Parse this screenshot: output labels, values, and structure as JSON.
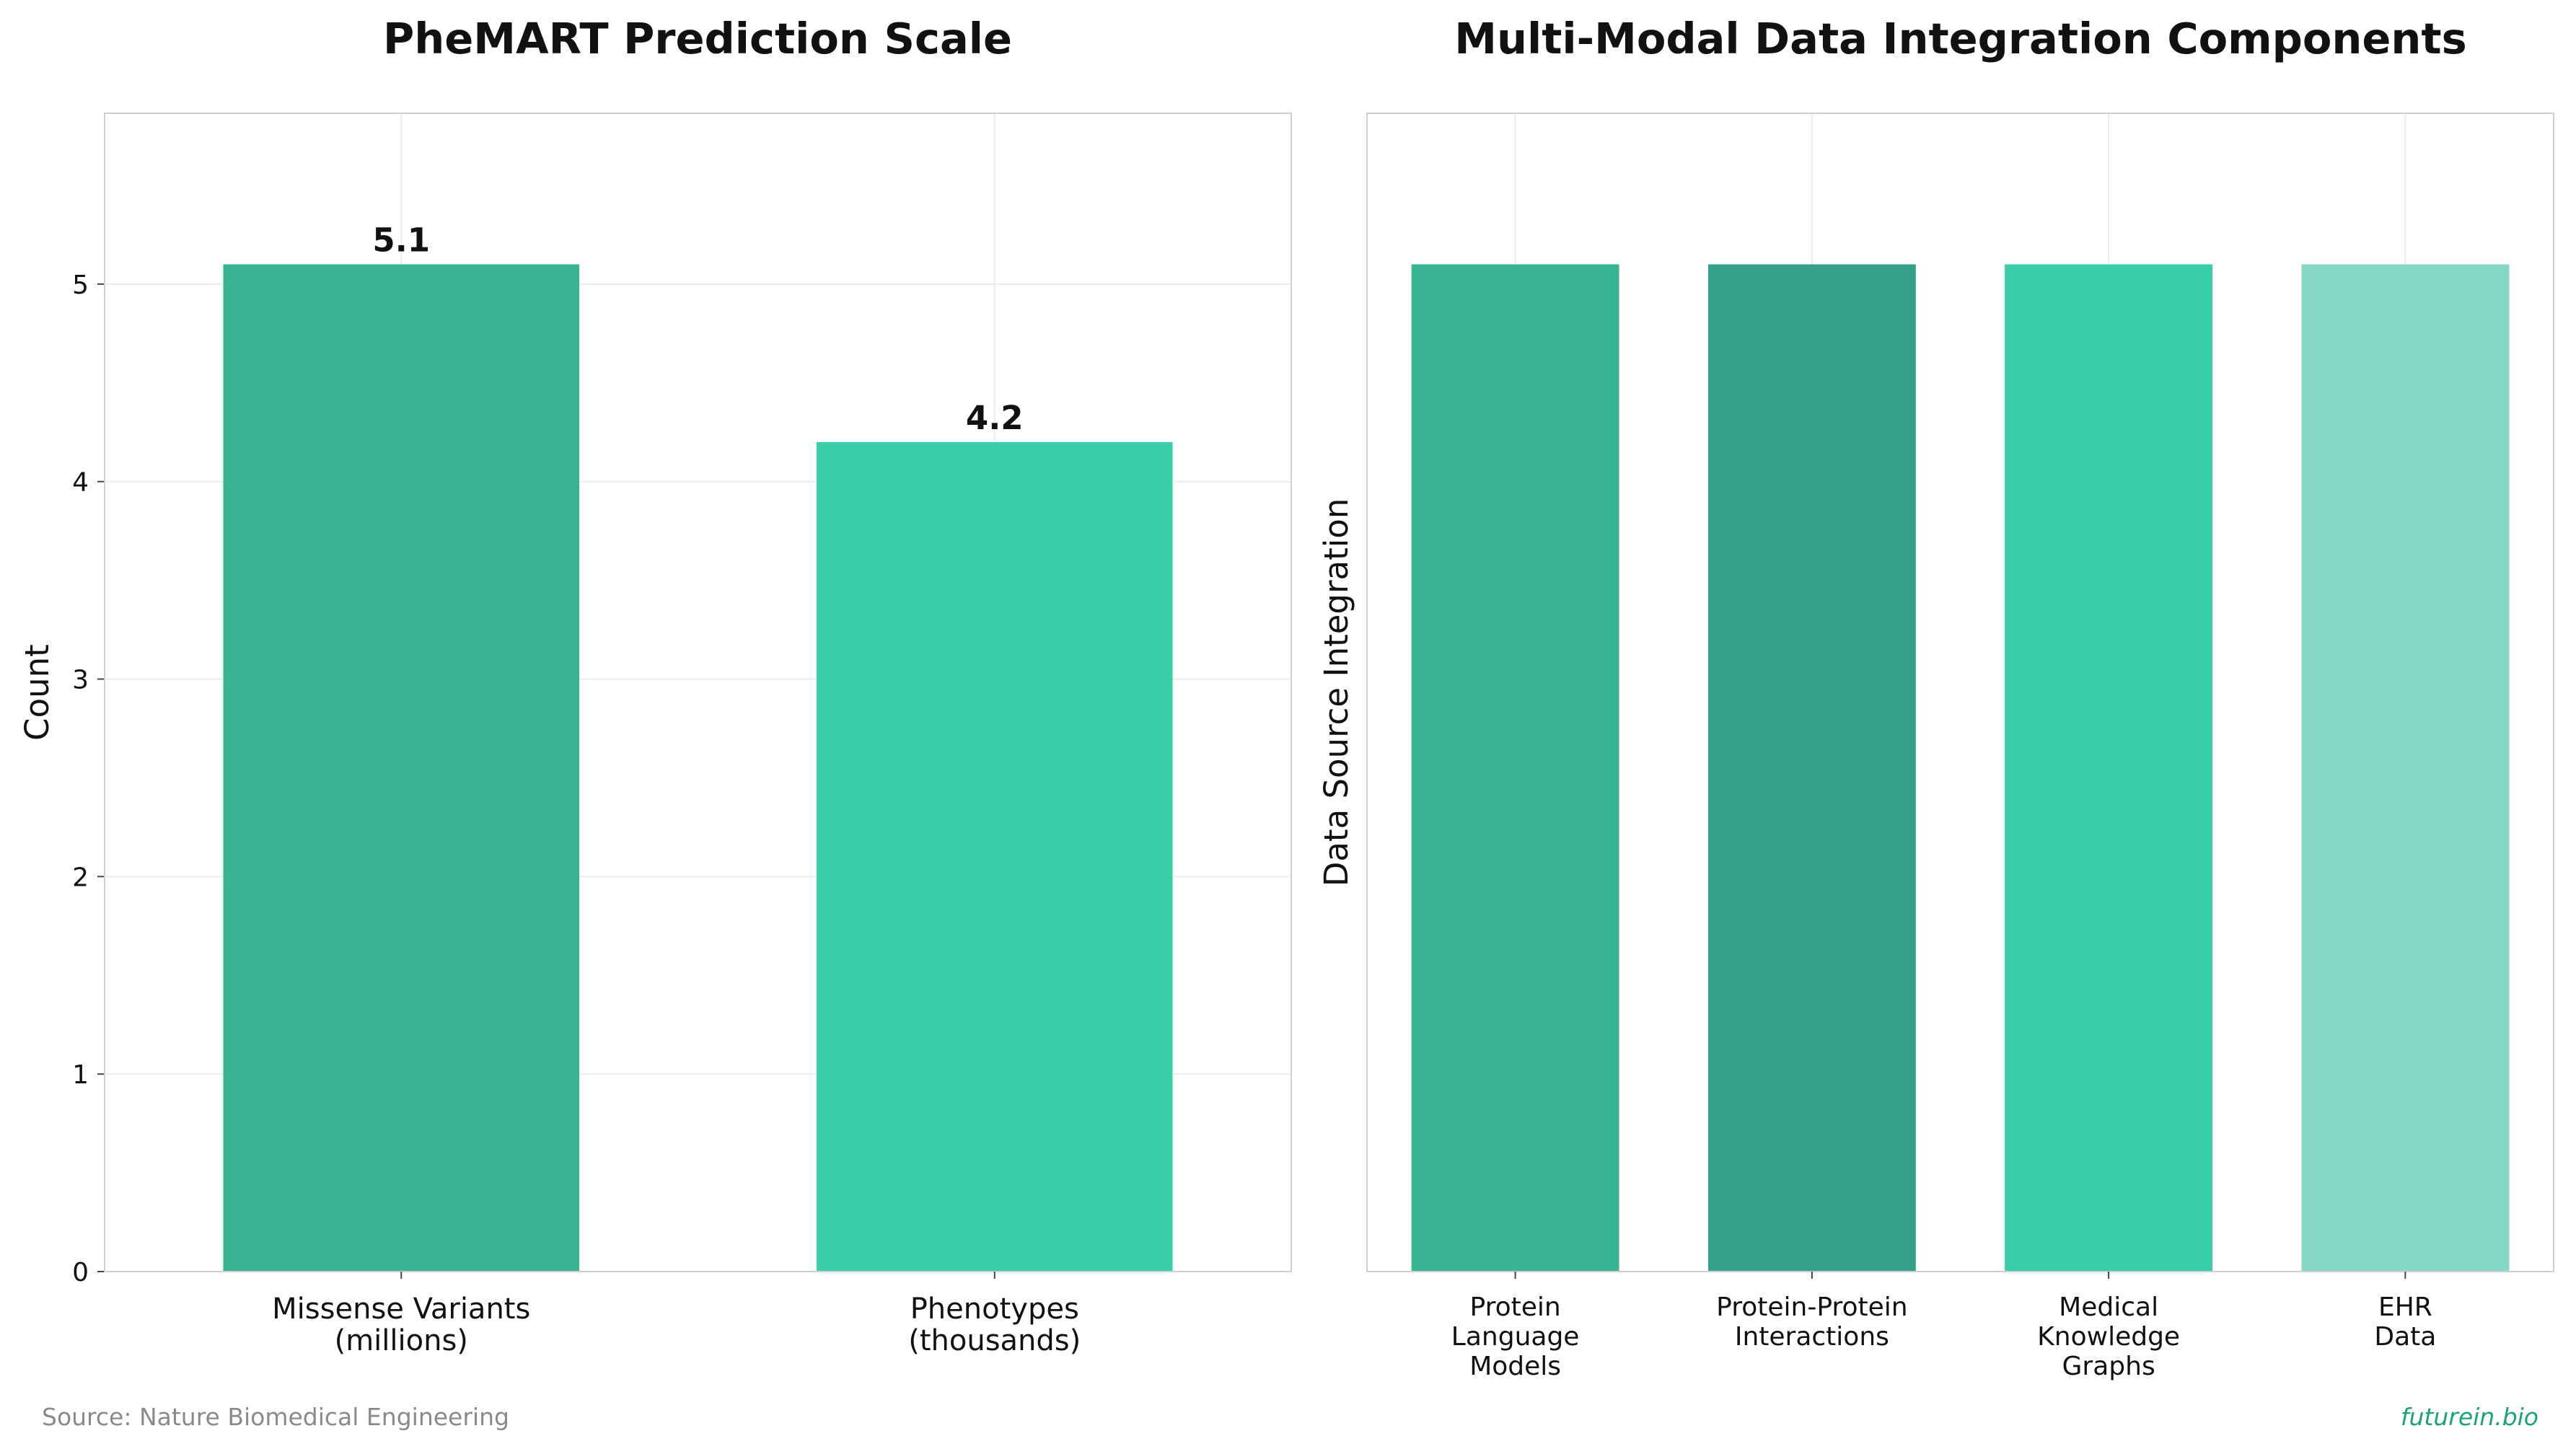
{
  "chart_data": [
    {
      "type": "bar",
      "title": "PheMART Prediction Scale",
      "xlabel": "",
      "ylabel": "Count",
      "categories": [
        [
          "Missense Variants",
          "(millions)"
        ],
        [
          "Phenotypes",
          "(thousands)"
        ]
      ],
      "values": [
        5.1,
        4.2
      ],
      "value_labels": [
        "5.1",
        "4.2"
      ],
      "colors": [
        "#37b592",
        "#39cfa8"
      ],
      "ylim": [
        0,
        5.865
      ],
      "yticks": [
        0,
        1,
        2,
        3,
        4,
        5
      ],
      "grid": true
    },
    {
      "type": "bar",
      "title": "Multi-Modal Data Integration Components",
      "xlabel": "",
      "ylabel": "Data Source Integration",
      "categories": [
        [
          "Protein",
          "Language",
          "Models"
        ],
        [
          "Protein-Protein",
          "Interactions"
        ],
        [
          "Medical",
          "Knowledge",
          "Graphs"
        ],
        [
          "EHR",
          "Data"
        ]
      ],
      "values": [
        1,
        1,
        1,
        1
      ],
      "colors": [
        "#37b592",
        "#33a18a",
        "#38cfa8",
        "#83d9c5"
      ],
      "ylim": [
        0,
        1.15
      ],
      "yticks": [],
      "grid": true
    }
  ],
  "footer": {
    "source": "Source: Nature Biomedical Engineering",
    "brand": "futurein.bio"
  }
}
